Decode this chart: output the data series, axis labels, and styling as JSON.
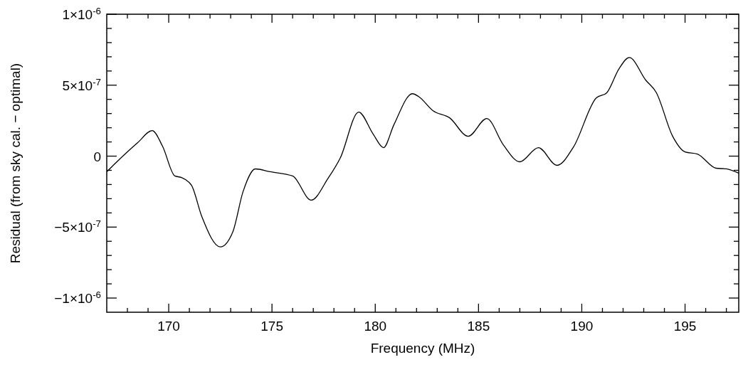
{
  "chart_data": {
    "type": "line",
    "xlabel": "Frequency (MHz)",
    "ylabel": "Residual (from sky cal. − optimal)",
    "xlim": [
      167,
      197.6
    ],
    "xticks": [
      {
        "value": 168,
        "label": null
      },
      {
        "value": 169,
        "label": null
      },
      170,
      {
        "value": 171,
        "label": null
      },
      {
        "value": 172,
        "label": null
      },
      {
        "value": 173,
        "label": null
      },
      {
        "value": 174,
        "label": null
      },
      175,
      {
        "value": 176,
        "label": null
      },
      {
        "value": 177,
        "label": null
      },
      {
        "value": 178,
        "label": null
      },
      {
        "value": 179,
        "label": null
      },
      180,
      {
        "value": 181,
        "label": null
      },
      {
        "value": 182,
        "label": null
      },
      {
        "value": 183,
        "label": null
      },
      {
        "value": 184,
        "label": null
      },
      185,
      {
        "value": 186,
        "label": null
      },
      {
        "value": 187,
        "label": null
      },
      {
        "value": 188,
        "label": null
      },
      {
        "value": 189,
        "label": null
      },
      190,
      {
        "value": 191,
        "label": null
      },
      {
        "value": 192,
        "label": null
      },
      {
        "value": 193,
        "label": null
      },
      {
        "value": 194,
        "label": null
      },
      195,
      {
        "value": 196,
        "label": null
      },
      {
        "value": 197,
        "label": null
      }
    ],
    "ylim": [
      -1.1e-06,
      1e-06
    ],
    "yticks": [
      {
        "value": -1e-06,
        "label": "−1×10$^{-6}$"
      },
      {
        "value": -9e-07,
        "label": null
      },
      {
        "value": -8e-07,
        "label": null
      },
      {
        "value": -7e-07,
        "label": null
      },
      {
        "value": -6e-07,
        "label": null
      },
      {
        "value": -5e-07,
        "label": "−5×10$^{-7}$"
      },
      {
        "value": -4e-07,
        "label": null
      },
      {
        "value": -3e-07,
        "label": null
      },
      {
        "value": -2e-07,
        "label": null
      },
      {
        "value": -1e-07,
        "label": null
      },
      0,
      {
        "value": 1e-07,
        "label": null
      },
      {
        "value": 2e-07,
        "label": null
      },
      {
        "value": 3e-07,
        "label": null
      },
      {
        "value": 4e-07,
        "label": null
      },
      {
        "value": 5e-07,
        "label": "5×10$^{-7}$"
      },
      {
        "value": 6e-07,
        "label": null
      },
      {
        "value": 7e-07,
        "label": null
      },
      {
        "value": 8e-07,
        "label": null
      },
      {
        "value": 9e-07,
        "label": null
      },
      {
        "value": 1e-06,
        "label": "1×10$^{-6}$"
      }
    ],
    "grid": false,
    "marker": "none",
    "line_style": "solid",
    "series": [
      {
        "color": "#000000",
        "x": [
          167.0,
          168.0,
          168.5,
          169.2,
          169.7,
          170.3,
          170.6,
          171.1,
          171.6,
          172.5,
          173.1,
          173.6,
          174.2,
          174.9,
          176.0,
          176.9,
          177.7,
          178.3,
          179.2,
          179.9,
          180.4,
          180.9,
          181.8,
          182.1,
          182.8,
          183.6,
          184.5,
          185.4,
          186.2,
          187.0,
          187.9,
          188.8,
          189.6,
          190.7,
          191.2,
          191.8,
          192.3,
          193.1,
          193.6,
          194.4,
          195.0,
          195.6,
          196.5,
          197.0,
          197.6
        ],
        "values": [
          -1.1e-07,
          3e-08,
          9.5e-08,
          1.8e-07,
          7e-08,
          -1.4e-07,
          -1.5e-07,
          -2.05e-07,
          -4.25e-07,
          -6.4e-07,
          -5.35e-07,
          -2.5e-07,
          -9e-08,
          -1.1e-07,
          -1.4e-07,
          -3.1e-07,
          -1.6e-07,
          -1.5e-08,
          3.1e-07,
          1.55e-07,
          6e-08,
          2.2e-07,
          4.4e-07,
          4.2e-07,
          3.2e-07,
          2.7e-07,
          1.4e-07,
          2.65e-07,
          8e-08,
          -4e-08,
          6e-08,
          -6.5e-08,
          6.5e-08,
          4.1e-07,
          4.45e-07,
          6.15e-07,
          6.95e-07,
          5.35e-07,
          4.5e-07,
          1.4e-07,
          3e-08,
          1.5e-08,
          -8.5e-08,
          -9e-08,
          -1.2e-07
        ]
      }
    ]
  }
}
